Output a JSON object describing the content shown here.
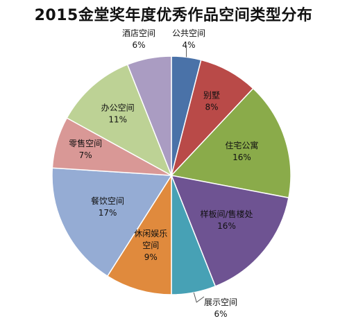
{
  "chart_data": {
    "type": "pie",
    "title": "2015金堂奖年度优秀作品空间类型分布",
    "slices": [
      {
        "label": "公共空间",
        "value": 4,
        "pct_label": "4%",
        "color": "#4a72a8"
      },
      {
        "label": "别墅",
        "value": 8,
        "pct_label": "8%",
        "color": "#b94a48"
      },
      {
        "label": "住宅公寓",
        "value": 16,
        "pct_label": "16%",
        "color": "#8aab4a"
      },
      {
        "label": "样板间/售楼处",
        "value": 16,
        "pct_label": "16%",
        "color": "#6e5392"
      },
      {
        "label": "展示空间",
        "value": 6,
        "pct_label": "6%",
        "color": "#47a1b5"
      },
      {
        "label": "休闲娱乐空间",
        "value": 9,
        "pct_label": "9%",
        "color": "#e08a3d"
      },
      {
        "label": "餐饮空间",
        "value": 17,
        "pct_label": "17%",
        "color": "#95acd4"
      },
      {
        "label": "零售空间",
        "value": 7,
        "pct_label": "7%",
        "color": "#d99896"
      },
      {
        "label": "办公空间",
        "value": 11,
        "pct_label": "11%",
        "color": "#bdd295"
      },
      {
        "label": "酒店空间",
        "value": 6,
        "pct_label": "6%",
        "color": "#aa9cc2"
      }
    ]
  }
}
